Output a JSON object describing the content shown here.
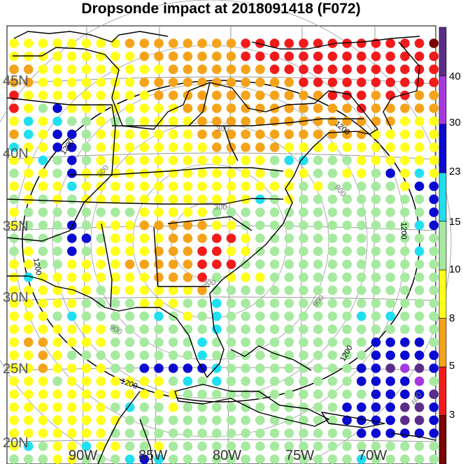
{
  "title": "Dropsonde impact at 2018091418 (F072)",
  "lat_labels": [
    "45N",
    "40N",
    "35N",
    "30N",
    "25N",
    "20N"
  ],
  "lon_labels": [
    "90W",
    "85W",
    "80W",
    "75W",
    "70W"
  ],
  "range_ring_labels": [
    "1200",
    "900",
    "600",
    "300"
  ],
  "colorbar": {
    "tick_labels": [
      "40",
      "30",
      "23",
      "15",
      "10",
      "8",
      "5",
      "3"
    ],
    "colors": [
      "#5b2d8a",
      "#a53ae0",
      "#0a0ad0",
      "#20e0f0",
      "#a6eaa0",
      "#ffff1a",
      "#f5a31a",
      "#f21b1b",
      "#7a0606"
    ]
  },
  "chart_data": {
    "type": "map-scatter",
    "title": "Dropsonde impact at 2018091418 (F072)",
    "value_bins": [
      {
        "upper": 3,
        "color": "#5b2d8a"
      },
      {
        "upper": 5,
        "color": "#a53ae0"
      },
      {
        "upper": 8,
        "color": "#0a0ad0"
      },
      {
        "upper": 10,
        "color": "#20e0f0"
      },
      {
        "upper": 15,
        "color": "#a6eaa0"
      },
      {
        "upper": 23,
        "color": "#ffff1a"
      },
      {
        "upper": 30,
        "color": "#f5a31a"
      },
      {
        "upper": 40,
        "color": "#f21b1b"
      },
      {
        "upper": 50,
        "color": "#7a0606"
      }
    ],
    "dot_grid": [
      "xyyyyyyyooooooooRRRRRRRRRRRRRX",
      "yyyyyyyyyoooooooRRRRRRRRRRRRRR",
      "ooyyyyyyyyyoooooooRRRRRRRRRRRR",
      "ooyyyyyyyoooooooooooRRRRRRRRRR",
      "RyyyyyyyyyooooooooooooRRRoRRoo",
      "RygbyyyyyyyyooooooooooooRooooo",
      "ycycggyggyyyyooooooooooooooyyy",
      "ocybbgyyyyyyyooooooooooooyyyyy",
      "cyybbgyyyyyyyyoooooyyyyyyyyyyy",
      "yycgbgyyyyyyyyyyyygccgggyyyyyy",
      "gyygbyyyyyyyyyyyyygyyggyygbycy",
      "yyyycyyyyyyyyyyyyyyygygggggybb",
      "gygygyyyyyyyyyyyycgygggggggggb",
      "yggggggggyyyyygggggggggggggggb",
      "ygggbgyyyoooooyyggggggggggggcb",
      "ggggbbgyyyyoooRRyggggggggggggg",
      "gyggbgyyyyoooRRyygggggggggggcg",
      "yyggyyyyoooooRRRgggggggggggggg",
      "ycyyyyyyyyoooRgyyygggggggggggg",
      "yyyyyygyyyyyyogggggggggggggggg",
      "yyyyyggggyyyggcggggggggggggggg",
      "yyygcgggggcgygcgggggggggcgcggg",
      "yyyyyyygggggggcggggggggggggggg",
      "yooyyyyggggggcgggggggggggbbbbg",
      "yyoygggggggggcgggggggggggbbbbb",
      "yyoyyyyggbbbbbcgggggggggbbvpvb",
      "yyygyyyyyyygcgcgggggggggbbbbpg",
      "yyyyyyyyyyyygggggggggggggbbbbv",
      "yyyyyyygcggygggggggggggbbbbvvb",
      "yyyyyyyygggggggggggggggbbbbvvb",
      "yyyyyyygggggggggggggggggbbbbbb",
      "ycgyycyyggyggggggggggggggggggg",
      "gggyygggcbcgggggggggggggcggggg"
    ],
    "legend_ticks": [
      3,
      5,
      8,
      10,
      15,
      23,
      30,
      40
    ]
  }
}
